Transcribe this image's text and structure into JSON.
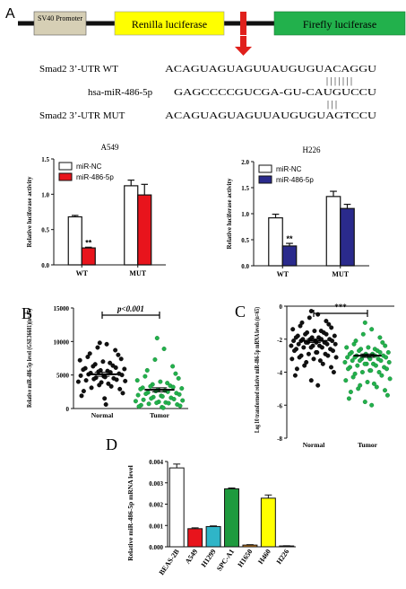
{
  "construct": {
    "panel_letter": "A",
    "sv40": "SV40 Promoter",
    "renilla": "Renilla luciferase",
    "firefly": "Firefly luciferase",
    "colors": {
      "sv40": "#d6cfb5",
      "renilla": "#ffff00",
      "firefly": "#22b14c",
      "arrow": "#e0201c"
    }
  },
  "alignment": {
    "rows": [
      {
        "label": "Smad2 3’-UTR WT",
        "seq": "ACAGUAGUAGUUAUGUGUACAGGU"
      },
      {
        "label": "hsa-miR-486-5p",
        "seq": "GAGCCCCGUCGA-GU-CAUGUCCU"
      },
      {
        "label": "Smad2 3’-UTR MUT",
        "seq": "ACAGUAGUAGUUAUGUGUAGTCCU"
      }
    ]
  },
  "chart_data": [
    {
      "id": "A549",
      "type": "bar",
      "title": "A549",
      "ylabel": "Relative luciferase activity",
      "ylim": [
        0,
        1.5
      ],
      "yticks": [
        "0.0",
        "0.5",
        "1.0",
        "1.5"
      ],
      "categories": [
        "WT",
        "MUT"
      ],
      "series": [
        {
          "name": "miR-NC",
          "values": [
            0.68,
            1.12
          ],
          "errors": [
            0.02,
            0.08
          ],
          "color": "#ffffff"
        },
        {
          "name": "miR-486-5p",
          "values": [
            0.24,
            0.99
          ],
          "errors": [
            0.01,
            0.15
          ],
          "color": "#e8141c"
        }
      ],
      "annotations": [
        {
          "text": "**",
          "category": "WT",
          "series": 1
        }
      ],
      "legend": "top-left"
    },
    {
      "id": "H226",
      "type": "bar",
      "title": "H226",
      "ylabel": "Relative luciferase activity",
      "ylim": [
        0,
        2.0
      ],
      "yticks": [
        "0.0",
        "0.5",
        "1.0",
        "1.5",
        "2.0"
      ],
      "categories": [
        "WT",
        "MUT"
      ],
      "series": [
        {
          "name": "miR-NC",
          "values": [
            0.92,
            1.33
          ],
          "errors": [
            0.07,
            0.1
          ],
          "color": "#ffffff"
        },
        {
          "name": "miR-486-5p",
          "values": [
            0.38,
            1.1
          ],
          "errors": [
            0.05,
            0.08
          ],
          "color": "#2a2a8c"
        }
      ],
      "annotations": [
        {
          "text": "**",
          "category": "WT",
          "series": 1
        }
      ],
      "legend": "top-left"
    },
    {
      "id": "B",
      "panel_letter": "B",
      "type": "scatter",
      "ylabel": "Relative miR-486-5p level (GSE36681)(n=47)",
      "ylim": [
        0,
        15000
      ],
      "yticks": [
        "0",
        "5000",
        "10000",
        "15000"
      ],
      "categories": [
        "Normal",
        "Tumor"
      ],
      "series": [
        {
          "name": "Normal",
          "color": "#111111",
          "mean": 5100,
          "sem": 300,
          "values": [
            9800,
            9600,
            9100,
            8700,
            8200,
            8000,
            7700,
            7400,
            7200,
            7000,
            6800,
            6600,
            6400,
            6300,
            6100,
            6000,
            5900,
            5800,
            5700,
            5600,
            5500,
            5400,
            5300,
            5200,
            5100,
            5000,
            4900,
            4800,
            4700,
            4600,
            4500,
            4400,
            4300,
            4200,
            4100,
            4000,
            3900,
            3700,
            3500,
            3300,
            3100,
            2900,
            2600,
            2300,
            1900,
            1500,
            600
          ]
        },
        {
          "name": "Tumor",
          "color": "#22b14c",
          "mean": 2800,
          "sem": 300,
          "values": [
            10500,
            8900,
            7300,
            6300,
            5700,
            5200,
            4800,
            4500,
            4200,
            4000,
            3800,
            3600,
            3400,
            3300,
            3200,
            3100,
            3000,
            2900,
            2800,
            2700,
            2600,
            2500,
            2400,
            2300,
            2200,
            2100,
            2000,
            1900,
            1800,
            1700,
            1600,
            1500,
            1400,
            1300,
            1200,
            1100,
            1000,
            900,
            850,
            800,
            700,
            600,
            500,
            400,
            300,
            200,
            100
          ]
        }
      ],
      "annotations": [
        {
          "text": "p<0.001"
        }
      ]
    },
    {
      "id": "C",
      "panel_letter": "C",
      "type": "scatter",
      "ylabel": "Log 10 transformed relative miR-486-5p mRNA levels (n=65)",
      "ylim": [
        -8,
        0
      ],
      "yticks": [
        "0",
        "-2",
        "-4",
        "-6",
        "-8"
      ],
      "categories": [
        "Normal",
        "Tumor"
      ],
      "series": [
        {
          "name": "Normal",
          "color": "#111111",
          "mean": -2.1,
          "sem": 0.1,
          "values": [
            -0.3,
            -0.5,
            -0.7,
            -0.9,
            -1.0,
            -1.1,
            -1.2,
            -1.3,
            -1.4,
            -1.5,
            -1.5,
            -1.6,
            -1.6,
            -1.7,
            -1.7,
            -1.8,
            -1.8,
            -1.9,
            -1.9,
            -1.9,
            -2.0,
            -2.0,
            -2.0,
            -2.0,
            -2.1,
            -2.1,
            -2.1,
            -2.1,
            -2.2,
            -2.2,
            -2.2,
            -2.2,
            -2.3,
            -2.3,
            -2.3,
            -2.4,
            -2.4,
            -2.4,
            -2.5,
            -2.5,
            -2.5,
            -2.6,
            -2.6,
            -2.7,
            -2.7,
            -2.8,
            -2.8,
            -2.9,
            -2.9,
            -3.0,
            -3.0,
            -3.1,
            -3.1,
            -3.2,
            -3.2,
            -3.3,
            -3.4,
            -3.5,
            -3.6,
            -3.7,
            -3.8,
            -4.0,
            -4.2,
            -4.5,
            -4.8
          ]
        },
        {
          "name": "Tumor",
          "color": "#22b14c",
          "mean": -3.0,
          "sem": 0.1,
          "values": [
            -1.0,
            -1.4,
            -1.7,
            -1.9,
            -2.1,
            -2.2,
            -2.3,
            -2.4,
            -2.5,
            -2.5,
            -2.6,
            -2.6,
            -2.7,
            -2.7,
            -2.8,
            -2.8,
            -2.8,
            -2.9,
            -2.9,
            -2.9,
            -3.0,
            -3.0,
            -3.0,
            -3.0,
            -3.1,
            -3.1,
            -3.1,
            -3.1,
            -3.2,
            -3.2,
            -3.2,
            -3.3,
            -3.3,
            -3.3,
            -3.4,
            -3.4,
            -3.5,
            -3.5,
            -3.5,
            -3.6,
            -3.6,
            -3.7,
            -3.7,
            -3.8,
            -3.8,
            -3.9,
            -3.9,
            -4.0,
            -4.0,
            -4.1,
            -4.2,
            -4.3,
            -4.4,
            -4.5,
            -4.6,
            -4.7,
            -4.8,
            -4.9,
            -5.0,
            -5.1,
            -5.2,
            -5.4,
            -5.6,
            -5.8,
            -6.0
          ]
        }
      ],
      "annotations": [
        {
          "text": "***"
        }
      ]
    },
    {
      "id": "D",
      "panel_letter": "D",
      "type": "bar",
      "ylabel": "Relative miR-486-5p mRNA level",
      "ylim": [
        0,
        0.004
      ],
      "yticks": [
        "0.000",
        "0.001",
        "0.002",
        "0.003",
        "0.004"
      ],
      "categories": [
        "BEAS-2B",
        "A549",
        "H1299",
        "SPC-A1",
        "H1650",
        "H460",
        "H226"
      ],
      "values": [
        0.0037,
        0.00085,
        0.00095,
        0.00272,
        8e-05,
        0.00228,
        4e-05
      ],
      "errors": [
        0.00018,
        4e-05,
        3e-05,
        4e-05,
        2e-05,
        0.00015,
        1e-05
      ],
      "colors": [
        "#ffffff",
        "#e8141c",
        "#2fb5c8",
        "#1e9a3e",
        "#e88a1a",
        "#ffff00",
        "#2a2a8c"
      ]
    }
  ]
}
